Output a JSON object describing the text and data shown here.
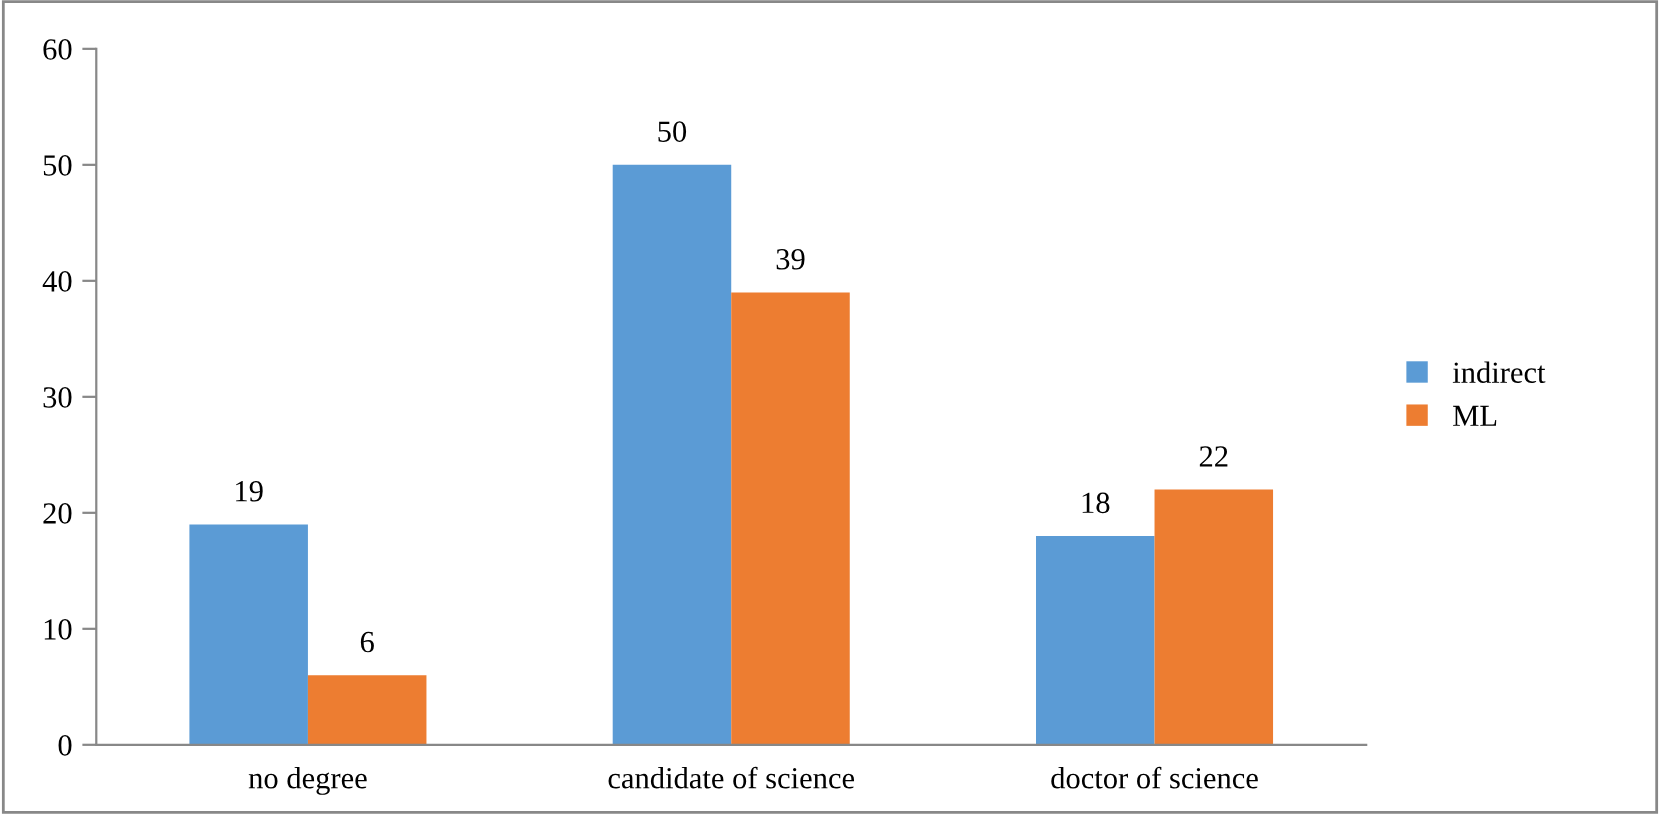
{
  "chart_data": {
    "type": "bar",
    "categories": [
      "no degree",
      "candidate of science",
      "doctor of science"
    ],
    "series": [
      {
        "name": "indirect",
        "color": "#5b9bd5",
        "values": [
          19,
          50,
          18
        ]
      },
      {
        "name": "ML",
        "color": "#ed7d31",
        "values": [
          6,
          39,
          22
        ]
      }
    ],
    "ylim": [
      0,
      60
    ],
    "yticks": [
      0,
      10,
      20,
      30,
      40,
      50,
      60
    ],
    "grid": false,
    "legend": "right",
    "data_labels": true
  }
}
